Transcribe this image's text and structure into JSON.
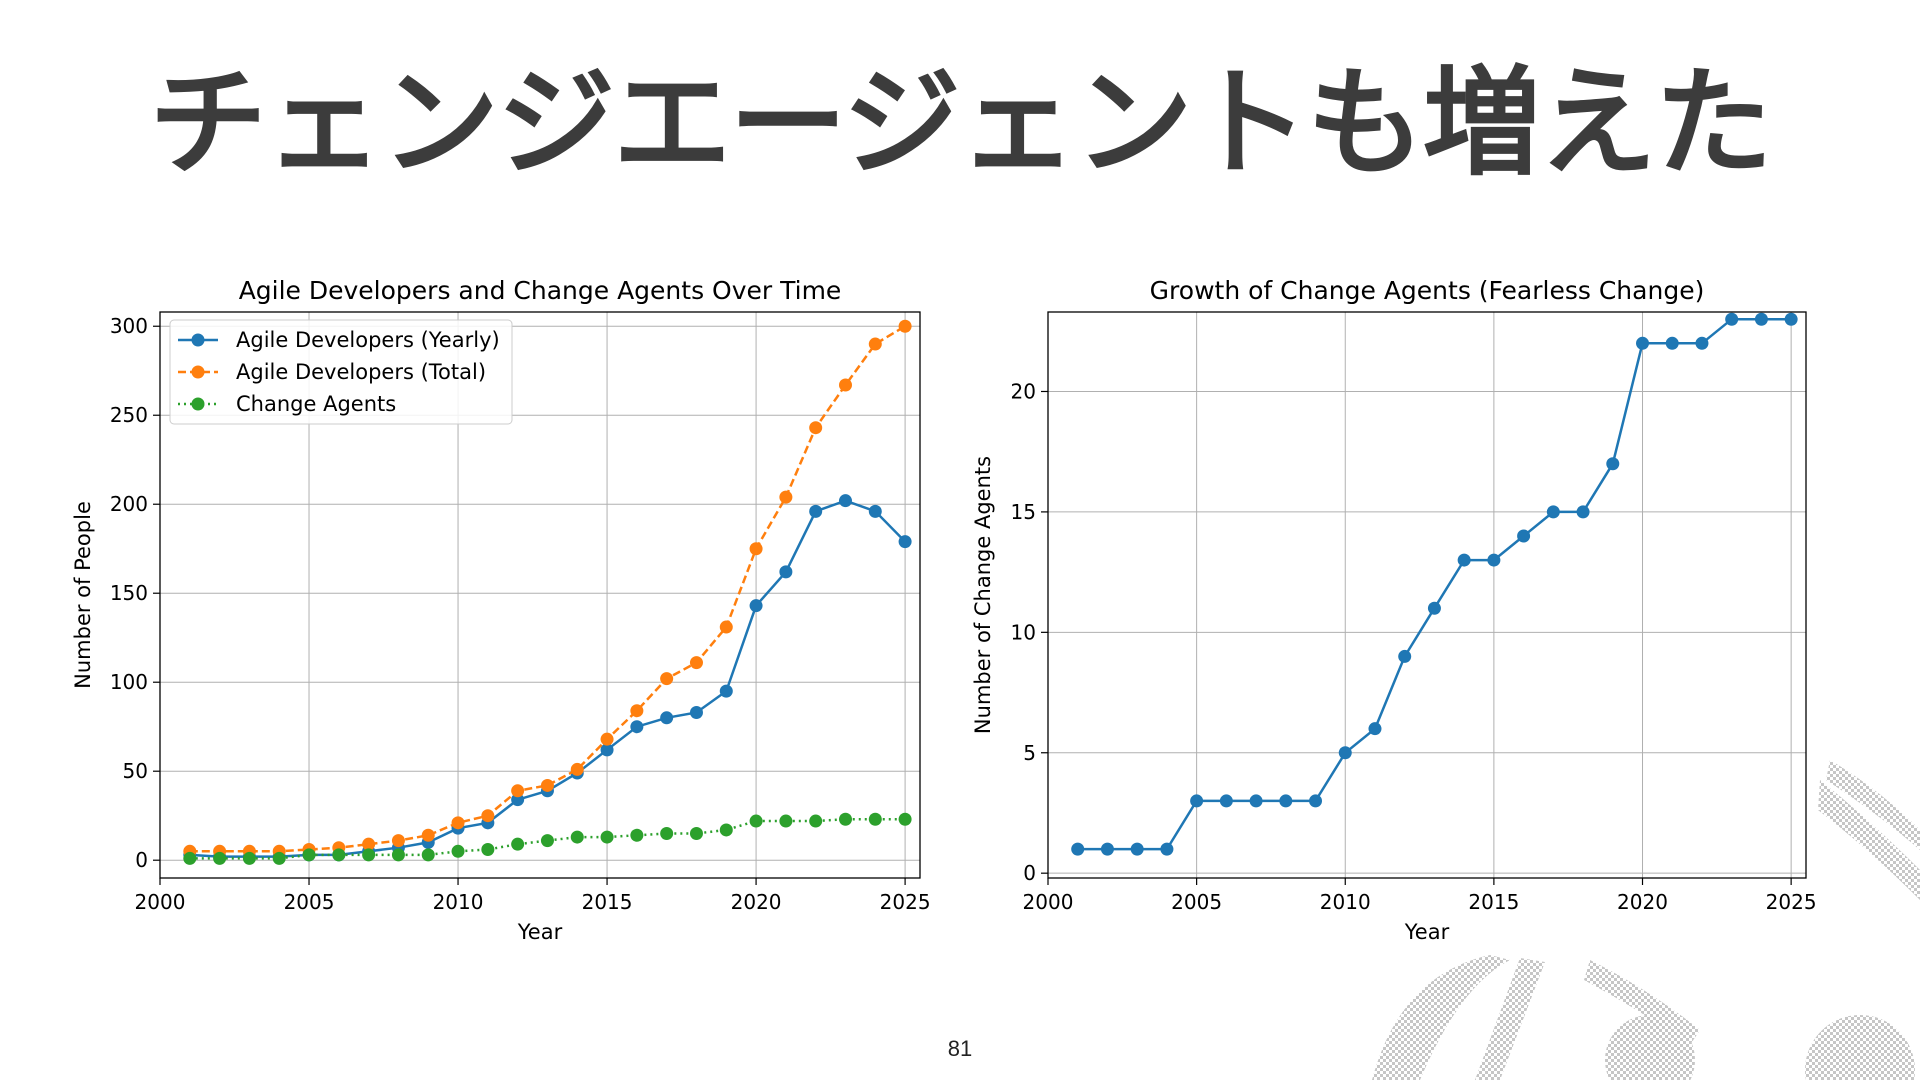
{
  "slide": {
    "title": "チェンジエージェントも増えた",
    "page_number": "81"
  },
  "colors": {
    "title": "#3c3c3c",
    "series_blue": "#1f77b4",
    "series_orange": "#ff7f0e",
    "series_green": "#2ca02c",
    "grid": "#b0b0b0",
    "decoration": "#c8c8c8"
  },
  "chart_data": [
    {
      "type": "line",
      "title": "Agile Developers and Change Agents Over Time",
      "xlabel": "Year",
      "ylabel": "Number of People",
      "xlim": [
        2000,
        2025.5
      ],
      "ylim": [
        -10,
        308
      ],
      "xticks": [
        2000,
        2005,
        2010,
        2015,
        2020,
        2025
      ],
      "yticks": [
        0,
        50,
        100,
        150,
        200,
        250,
        300
      ],
      "grid": true,
      "legend_position": "top-left",
      "x": [
        2001,
        2002,
        2003,
        2004,
        2005,
        2006,
        2007,
        2008,
        2009,
        2010,
        2011,
        2012,
        2013,
        2014,
        2015,
        2016,
        2017,
        2018,
        2019,
        2020,
        2021,
        2022,
        2023,
        2024,
        2025
      ],
      "series": [
        {
          "name": "Agile Developers (Yearly)",
          "color": "#1f77b4",
          "style": "solid",
          "values": [
            3,
            2,
            2,
            2,
            3,
            3,
            5,
            7,
            10,
            18,
            21,
            34,
            39,
            49,
            62,
            75,
            80,
            83,
            95,
            143,
            162,
            196,
            202,
            196,
            179
          ]
        },
        {
          "name": "Agile Developers (Total)",
          "color": "#ff7f0e",
          "style": "dashed",
          "values": [
            5,
            5,
            5,
            5,
            6,
            7,
            9,
            11,
            14,
            21,
            25,
            39,
            42,
            51,
            68,
            84,
            102,
            111,
            131,
            175,
            204,
            243,
            267,
            290,
            300
          ]
        },
        {
          "name": "Change Agents",
          "color": "#2ca02c",
          "style": "dotted",
          "values": [
            1,
            1,
            1,
            1,
            3,
            3,
            3,
            3,
            3,
            5,
            6,
            9,
            11,
            13,
            13,
            14,
            15,
            15,
            17,
            22,
            22,
            22,
            23,
            23,
            23
          ]
        }
      ]
    },
    {
      "type": "line",
      "title": "Growth of Change Agents (Fearless Change)",
      "xlabel": "Year",
      "ylabel": "Number of Change Agents",
      "xlim": [
        2000,
        2025.5
      ],
      "ylim": [
        -0.2,
        23.3
      ],
      "xticks": [
        2000,
        2005,
        2010,
        2015,
        2020,
        2025
      ],
      "yticks": [
        0,
        5,
        10,
        15,
        20
      ],
      "grid": true,
      "x": [
        2001,
        2002,
        2003,
        2004,
        2005,
        2006,
        2007,
        2008,
        2009,
        2010,
        2011,
        2012,
        2013,
        2014,
        2015,
        2016,
        2017,
        2018,
        2019,
        2020,
        2021,
        2022,
        2023,
        2024,
        2025
      ],
      "series": [
        {
          "color": "#1f77b4",
          "style": "solid",
          "values": [
            1,
            1,
            1,
            1,
            3,
            3,
            3,
            3,
            3,
            5,
            6,
            9,
            11,
            13,
            13,
            14,
            15,
            15,
            17,
            22,
            22,
            22,
            23,
            23,
            23
          ]
        }
      ]
    }
  ]
}
